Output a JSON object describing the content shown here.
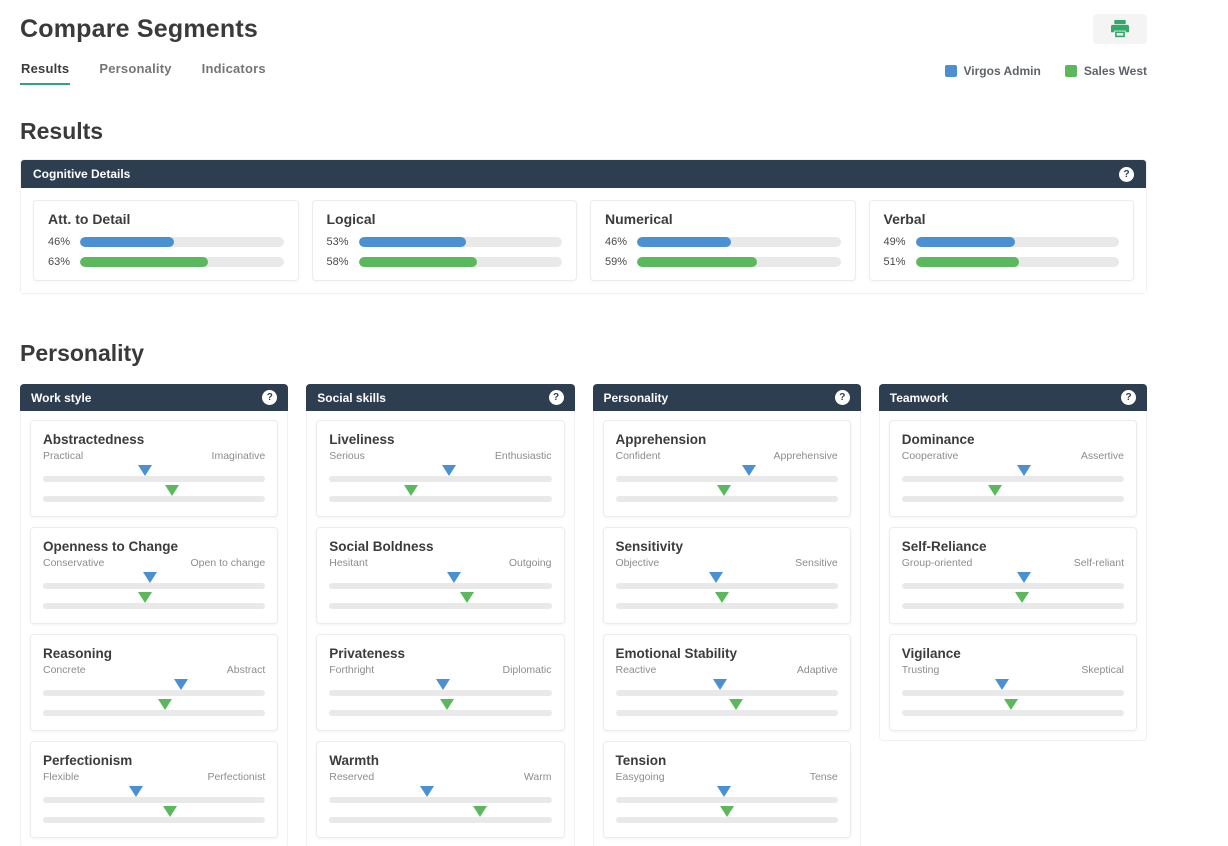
{
  "page": {
    "title": "Compare Segments"
  },
  "header": {
    "print_button": {
      "icon": "printer-icon"
    }
  },
  "tabs": [
    {
      "label": "Results",
      "active": true
    },
    {
      "label": "Personality",
      "active": false
    },
    {
      "label": "Indicators",
      "active": false
    }
  ],
  "legend": [
    {
      "label": "Virgos Admin",
      "color": "#4a90d2"
    },
    {
      "label": "Sales West",
      "color": "#5cb85c"
    }
  ],
  "colors": {
    "blue": "#4a90d2",
    "green": "#5cb85c",
    "header_bar": "#2d3e50",
    "tab_underline": "#2aa876",
    "track": "#e9e9e9",
    "print_icon_green": "#34a866"
  },
  "icons": {
    "help_glyph": "?"
  },
  "results": {
    "heading": "Results",
    "panel_title": "Cognitive Details",
    "cards": [
      {
        "title": "Att. to Detail",
        "series": [
          {
            "segment": "virgos-admin",
            "label": "46%",
            "value": 46,
            "color": "blue"
          },
          {
            "segment": "sales-west",
            "label": "63%",
            "value": 63,
            "color": "green"
          }
        ]
      },
      {
        "title": "Logical",
        "series": [
          {
            "segment": "virgos-admin",
            "label": "53%",
            "value": 53,
            "color": "blue"
          },
          {
            "segment": "sales-west",
            "label": "58%",
            "value": 58,
            "color": "green"
          }
        ]
      },
      {
        "title": "Numerical",
        "series": [
          {
            "segment": "virgos-admin",
            "label": "46%",
            "value": 46,
            "color": "blue"
          },
          {
            "segment": "sales-west",
            "label": "59%",
            "value": 59,
            "color": "green"
          }
        ]
      },
      {
        "title": "Verbal",
        "series": [
          {
            "segment": "virgos-admin",
            "label": "49%",
            "value": 49,
            "color": "blue"
          },
          {
            "segment": "sales-west",
            "label": "51%",
            "value": 51,
            "color": "green"
          }
        ]
      }
    ]
  },
  "personality": {
    "heading": "Personality",
    "columns": [
      {
        "title": "Work style",
        "partial_card": false,
        "cards": [
          {
            "title": "Abstractedness",
            "left": "Practical",
            "right": "Imaginative",
            "virgos_admin": 46,
            "sales_west": 58
          },
          {
            "title": "Openness to Change",
            "left": "Conservative",
            "right": "Open to change",
            "virgos_admin": 48,
            "sales_west": 46
          },
          {
            "title": "Reasoning",
            "left": "Concrete",
            "right": "Abstract",
            "virgos_admin": 62,
            "sales_west": 55
          },
          {
            "title": "Perfectionism",
            "left": "Flexible",
            "right": "Perfectionist",
            "virgos_admin": 42,
            "sales_west": 57
          }
        ]
      },
      {
        "title": "Social skills",
        "partial_card": false,
        "cards": [
          {
            "title": "Liveliness",
            "left": "Serious",
            "right": "Enthusiastic",
            "virgos_admin": 54,
            "sales_west": 37
          },
          {
            "title": "Social Boldness",
            "left": "Hesitant",
            "right": "Outgoing",
            "virgos_admin": 56,
            "sales_west": 62
          },
          {
            "title": "Privateness",
            "left": "Forthright",
            "right": "Diplomatic",
            "virgos_admin": 51,
            "sales_west": 53
          },
          {
            "title": "Warmth",
            "left": "Reserved",
            "right": "Warm",
            "virgos_admin": 44,
            "sales_west": 68
          }
        ]
      },
      {
        "title": "Personality",
        "partial_card": true,
        "cards": [
          {
            "title": "Apprehension",
            "left": "Confident",
            "right": "Apprehensive",
            "virgos_admin": 60,
            "sales_west": 49
          },
          {
            "title": "Sensitivity",
            "left": "Objective",
            "right": "Sensitive",
            "virgos_admin": 45,
            "sales_west": 48
          },
          {
            "title": "Emotional Stability",
            "left": "Reactive",
            "right": "Adaptive",
            "virgos_admin": 47,
            "sales_west": 54
          },
          {
            "title": "Tension",
            "left": "Easygoing",
            "right": "Tense",
            "virgos_admin": 49,
            "sales_west": 50
          }
        ]
      },
      {
        "title": "Teamwork",
        "partial_card": false,
        "cards": [
          {
            "title": "Dominance",
            "left": "Cooperative",
            "right": "Assertive",
            "virgos_admin": 55,
            "sales_west": 42
          },
          {
            "title": "Self-Reliance",
            "left": "Group-oriented",
            "right": "Self-reliant",
            "virgos_admin": 55,
            "sales_west": 54
          },
          {
            "title": "Vigilance",
            "left": "Trusting",
            "right": "Skeptical",
            "virgos_admin": 45,
            "sales_west": 49
          }
        ]
      }
    ]
  }
}
